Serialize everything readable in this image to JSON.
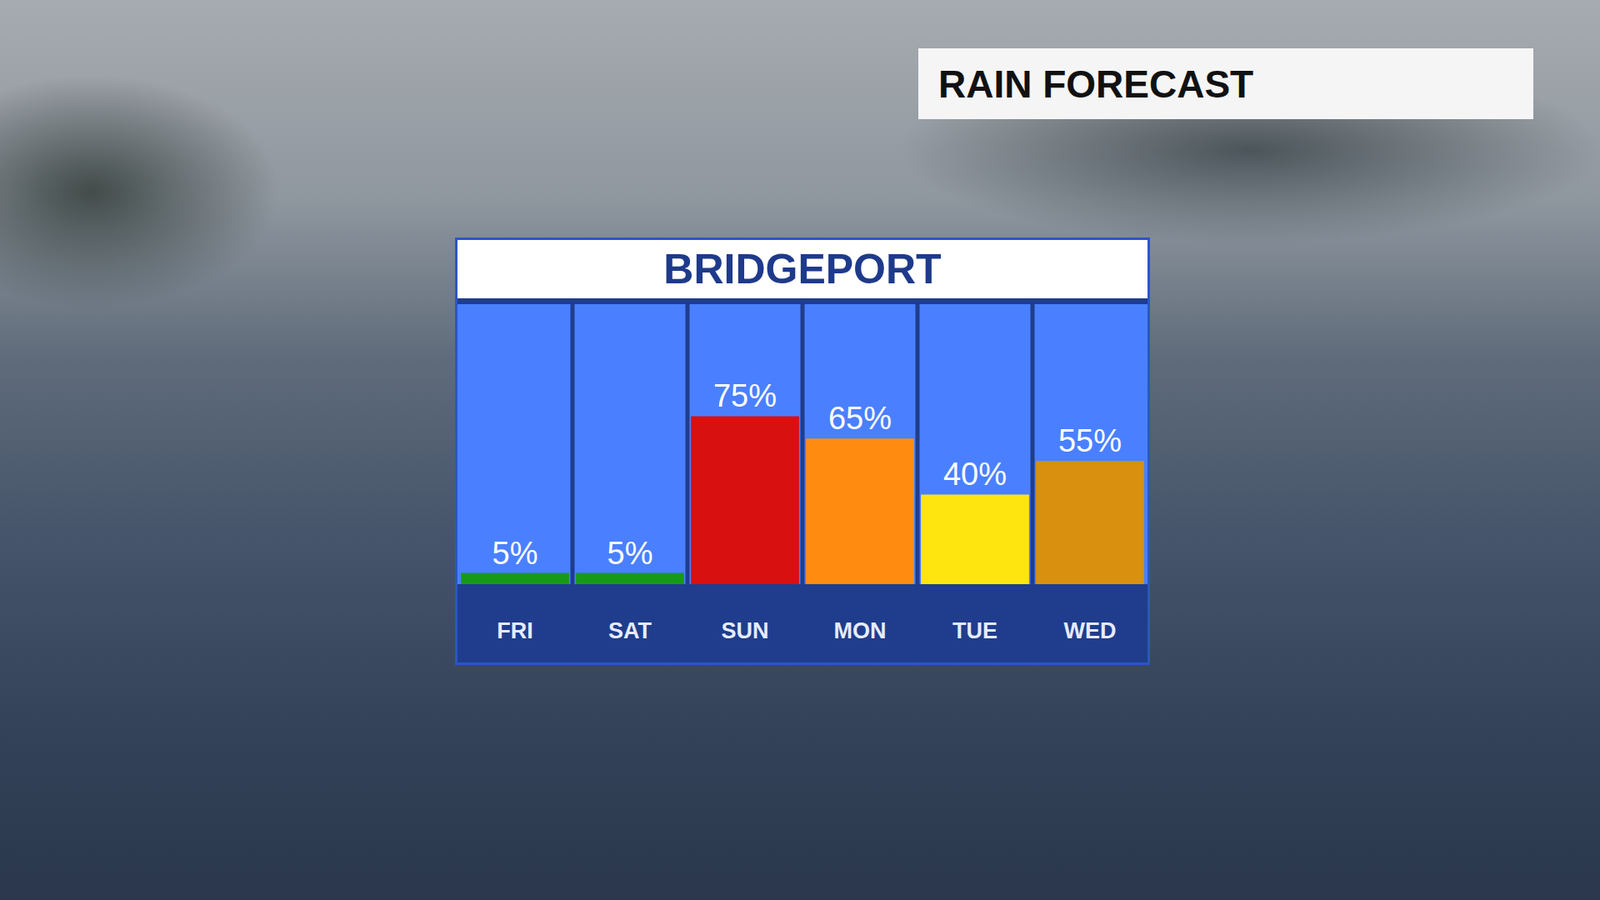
{
  "header": {
    "title": "RAIN FORECAST"
  },
  "chart_data": {
    "type": "bar",
    "title": "BRIDGEPORT",
    "categories": [
      "FRI",
      "SAT",
      "SUN",
      "MON",
      "TUE",
      "WED"
    ],
    "values": [
      5,
      5,
      75,
      65,
      40,
      55
    ],
    "value_labels": [
      "5%",
      "5%",
      "75%",
      "65%",
      "40%",
      "55%"
    ],
    "colors": [
      "#179a17",
      "#179a17",
      "#d81010",
      "#ff8c10",
      "#ffe510",
      "#d8900e"
    ],
    "ylim": [
      0,
      125
    ],
    "tick_labels": "x",
    "grid": false,
    "data_labels": true
  }
}
